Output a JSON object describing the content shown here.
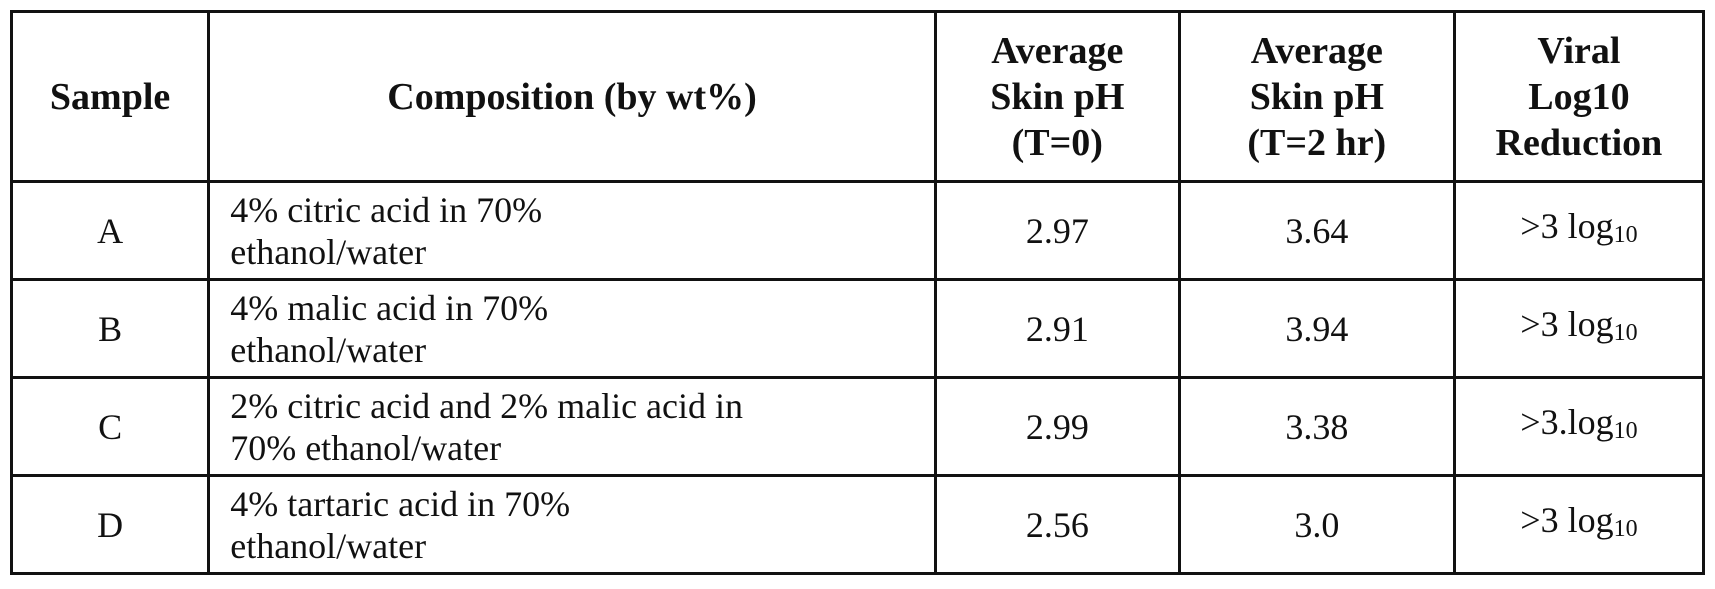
{
  "table": {
    "headers": {
      "sample": "Sample",
      "composition": "Composition (by wt%)",
      "ph_t0": [
        "Average",
        "Skin pH",
        "(T=0)"
      ],
      "ph_t2": [
        "Average",
        "Skin pH",
        "(T=2 hr)"
      ],
      "viral": [
        "Viral",
        "Log10",
        "Reduction"
      ]
    },
    "rows": [
      {
        "sample": "A",
        "composition": [
          "4% citric acid in 70%",
          "ethanol/water"
        ],
        "ph_t0": "2.97",
        "ph_t2": "3.64",
        "viral_prefix": ">3 log",
        "viral_sub": "10"
      },
      {
        "sample": "B",
        "composition": [
          "4% malic acid in 70%",
          "ethanol/water"
        ],
        "ph_t0": "2.91",
        "ph_t2": "3.94",
        "viral_prefix": ">3 log",
        "viral_sub": "10"
      },
      {
        "sample": "C",
        "composition": [
          "2% citric acid and 2% malic acid in",
          "70% ethanol/water"
        ],
        "ph_t0": "2.99",
        "ph_t2": "3.38",
        "viral_prefix": ">3.log",
        "viral_sub": "10"
      },
      {
        "sample": "D",
        "composition": [
          "4% tartaric acid in 70%",
          "ethanol/water"
        ],
        "ph_t0": "2.56",
        "ph_t2": "3.0",
        "viral_prefix": ">3 log",
        "viral_sub": "10"
      }
    ]
  }
}
